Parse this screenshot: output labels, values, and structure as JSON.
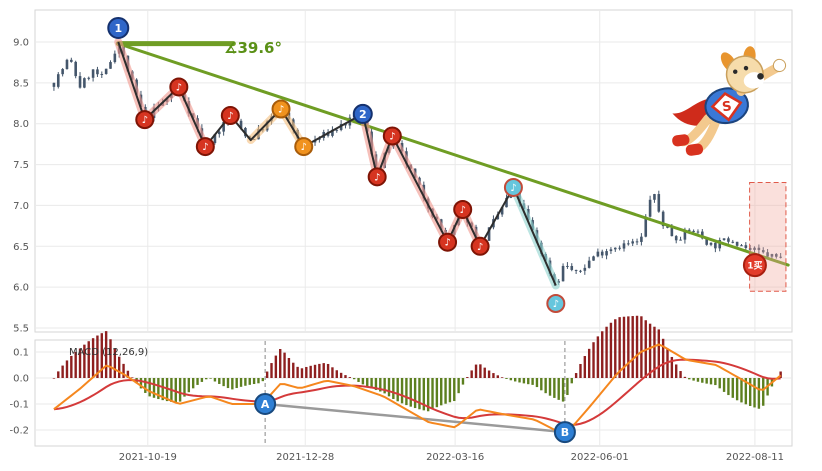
{
  "chart_data": {
    "type": "candlestick",
    "title": "",
    "x_axis": {
      "tick_labels": [
        "2021-10-19",
        "2021-12-28",
        "2022-03-16",
        "2022-06-01",
        "2022-08-11"
      ],
      "tick_positions": [
        0.149,
        0.357,
        0.555,
        0.746,
        0.951
      ]
    },
    "price_panel": {
      "y_ticks": [
        9.0,
        8.5,
        8.0,
        7.5,
        7.0,
        6.5,
        6.0,
        5.5
      ],
      "ylim": [
        5.47,
        9.39
      ],
      "candle_color": "#44566b",
      "series_path": [
        [
          0.025,
          8.5
        ],
        [
          0.045,
          8.8
        ],
        [
          0.06,
          8.45
        ],
        [
          0.075,
          8.65
        ],
        [
          0.09,
          8.55
        ],
        [
          0.11,
          9.0
        ],
        [
          0.145,
          8.05
        ],
        [
          0.19,
          8.45
        ],
        [
          0.225,
          7.72
        ],
        [
          0.258,
          8.1
        ],
        [
          0.285,
          7.8
        ],
        [
          0.325,
          8.18
        ],
        [
          0.355,
          7.72
        ],
        [
          0.433,
          8.12
        ],
        [
          0.452,
          7.35
        ],
        [
          0.472,
          7.85
        ],
        [
          0.545,
          6.55
        ],
        [
          0.565,
          6.95
        ],
        [
          0.588,
          6.5
        ],
        [
          0.632,
          7.22
        ],
        [
          0.688,
          6.02
        ],
        [
          0.7,
          6.3
        ],
        [
          0.715,
          6.15
        ],
        [
          0.74,
          6.4
        ],
        [
          0.765,
          6.5
        ],
        [
          0.8,
          6.55
        ],
        [
          0.815,
          7.2
        ],
        [
          0.828,
          6.8
        ],
        [
          0.845,
          6.6
        ],
        [
          0.87,
          6.7
        ],
        [
          0.895,
          6.5
        ],
        [
          0.92,
          6.6
        ],
        [
          0.945,
          6.45
        ],
        [
          0.985,
          6.35
        ]
      ],
      "zigzag": [
        {
          "x": 0.11,
          "price": 9.0,
          "marker": "one",
          "label": "1",
          "dy": -14
        },
        {
          "x": 0.145,
          "price": 8.05,
          "marker": "note-red",
          "seg": "#f0968c"
        },
        {
          "x": 0.19,
          "price": 8.45,
          "marker": "note-red",
          "seg": "#f0968c"
        },
        {
          "x": 0.225,
          "price": 7.72,
          "marker": "note-red",
          "seg": "#f0968c"
        },
        {
          "x": 0.258,
          "price": 8.1,
          "marker": "note-red",
          "seg": null
        },
        {
          "x": 0.285,
          "price": 7.8,
          "seg": null
        },
        {
          "x": 0.325,
          "price": 8.18,
          "marker": "note-orange",
          "seg": "#f5c07e"
        },
        {
          "x": 0.355,
          "price": 7.72,
          "marker": "note-orange",
          "seg": "#f5c07e"
        },
        {
          "x": 0.433,
          "price": 8.12,
          "marker": "two",
          "label": "2",
          "seg": null
        },
        {
          "x": 0.452,
          "price": 7.35,
          "marker": "note-red",
          "seg": "#f0968c"
        },
        {
          "x": 0.472,
          "price": 7.85,
          "marker": "note-red",
          "seg": "#f0968c"
        },
        {
          "x": 0.545,
          "price": 6.55,
          "marker": "note-red",
          "seg": "#f0968c"
        },
        {
          "x": 0.565,
          "price": 6.95,
          "marker": "note-red",
          "seg": "#f0968c"
        },
        {
          "x": 0.588,
          "price": 6.5,
          "marker": "note-red",
          "seg": "#f0968c"
        },
        {
          "x": 0.632,
          "price": 7.22,
          "marker": "note-teal",
          "seg": null
        },
        {
          "x": 0.688,
          "price": 6.02,
          "marker": "note-teal",
          "seg": "#8fd4cf",
          "dy": 18
        }
      ]
    },
    "trendline": {
      "x1": 0.11,
      "price1": 8.98,
      "x2": 0.995,
      "price2": 6.27,
      "color": "#6f9d24",
      "width": 3
    },
    "baseline": {
      "x1": 0.11,
      "x2": 0.262,
      "price": 8.98,
      "color": "#6f9d24",
      "width": 5
    },
    "angle_label": {
      "text": "∡39.6°",
      "color": "#5a9016"
    },
    "buy_signal": {
      "label": "1买",
      "x": 0.951,
      "price": 6.27,
      "badge_fill": "#e23b2a",
      "badge_stroke": "#a81f10",
      "text_color": "#ffffff",
      "box": {
        "x1": 0.944,
        "x2": 0.992,
        "price_top": 7.28,
        "price_bottom": 5.95,
        "fill": "rgba(242,166,155,0.35)",
        "stroke": "#e05a4a"
      }
    },
    "marker_styles": {
      "one": {
        "fill": "#2f66c8",
        "stroke": "#15316e",
        "text_color": "#ffffff"
      },
      "two": {
        "fill": "#2f66c8",
        "stroke": "#15316e",
        "text_color": "#ffffff"
      },
      "note-red": {
        "fill": "#d63420",
        "stroke": "#7e1405",
        "glyph": "♪",
        "text_color": "#ffffff"
      },
      "note-orange": {
        "fill": "#f0921e",
        "stroke": "#a85c0a",
        "glyph": "♪",
        "text_color": "#ffffff"
      },
      "note-teal": {
        "fill": "#66c6dd",
        "stroke": "#c24b3a",
        "glyph": "♪",
        "text_color": "#ffffff"
      }
    },
    "macd": {
      "label": "MACD (12,26,9)",
      "y_ticks": [
        "0.1",
        "0.0",
        "-0.1",
        "-0.2"
      ],
      "y_tick_values": [
        0.1,
        0.0,
        -0.1,
        -0.2
      ],
      "ylim": [
        -0.26,
        0.15
      ],
      "colors": {
        "dif": "#f5871e",
        "dea": "#d43a3a",
        "hist_pos": "#8e1f1f",
        "hist_neg": "#5c7f1f",
        "divergence": "#9a9a9a",
        "point_fill": "#2e7fd4",
        "point_stroke": "#18497e"
      },
      "dif_points": [
        [
          0.025,
          -0.12
        ],
        [
          0.06,
          -0.04
        ],
        [
          0.095,
          0.05
        ],
        [
          0.12,
          0.01
        ],
        [
          0.15,
          -0.05
        ],
        [
          0.19,
          -0.1
        ],
        [
          0.23,
          -0.07
        ],
        [
          0.26,
          -0.1
        ],
        [
          0.3,
          -0.1
        ],
        [
          0.325,
          -0.02
        ],
        [
          0.35,
          -0.04
        ],
        [
          0.385,
          -0.01
        ],
        [
          0.42,
          -0.03
        ],
        [
          0.46,
          -0.07
        ],
        [
          0.52,
          -0.17
        ],
        [
          0.555,
          -0.19
        ],
        [
          0.585,
          -0.12
        ],
        [
          0.62,
          -0.14
        ],
        [
          0.66,
          -0.16
        ],
        [
          0.7,
          -0.22
        ],
        [
          0.73,
          -0.12
        ],
        [
          0.77,
          0.02
        ],
        [
          0.8,
          0.1
        ],
        [
          0.825,
          0.13
        ],
        [
          0.86,
          0.07
        ],
        [
          0.9,
          0.05
        ],
        [
          0.93,
          0.0
        ],
        [
          0.96,
          -0.05
        ],
        [
          0.985,
          0.01
        ]
      ],
      "points": [
        {
          "label": "A",
          "x": 0.304,
          "value": -0.1
        },
        {
          "label": "B",
          "x": 0.7,
          "value": -0.208
        }
      ]
    }
  },
  "mascot": {
    "badge_letter": "S"
  }
}
